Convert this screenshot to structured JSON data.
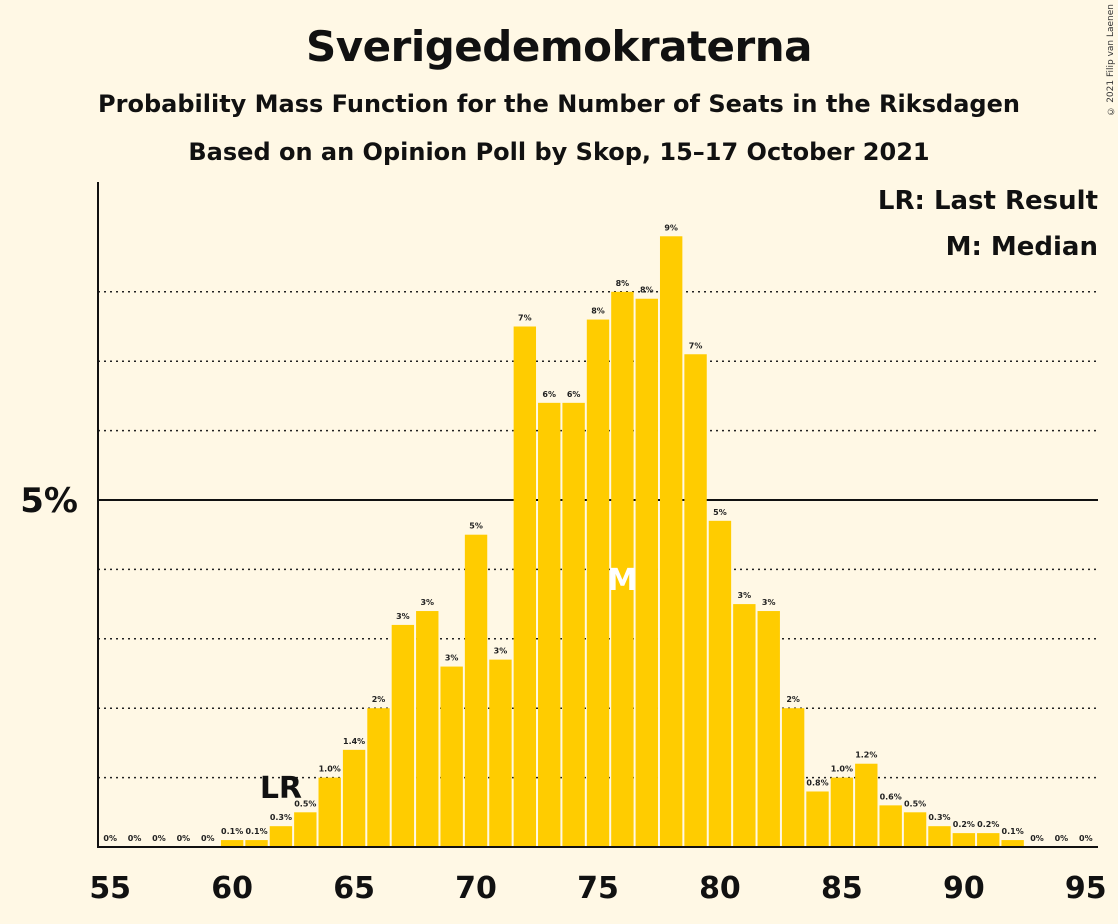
{
  "chart_data": {
    "type": "bar",
    "title": "Sverigedemokraterna",
    "subtitle": "Probability Mass Function for the Number of Seats in the Riksdagen",
    "subtitle2": "Based on an Opinion Poll by Skop, 15–17 October 2021",
    "x": [
      55,
      56,
      57,
      58,
      59,
      60,
      61,
      62,
      63,
      64,
      65,
      66,
      67,
      68,
      69,
      70,
      71,
      72,
      73,
      74,
      75,
      76,
      77,
      78,
      79,
      80,
      81,
      82,
      83,
      84,
      85,
      86,
      87,
      88,
      89,
      90,
      91,
      92,
      93,
      94,
      95
    ],
    "values": [
      0,
      0,
      0,
      0,
      0,
      0.1,
      0.1,
      0.3,
      0.5,
      1.0,
      1.4,
      2,
      3.2,
      3.4,
      2.6,
      4.5,
      2.7,
      7.5,
      6.4,
      6.4,
      7.6,
      8,
      7.9,
      8.8,
      7.1,
      4.7,
      3.5,
      3.4,
      2,
      0.8,
      1.0,
      1.2,
      0.6,
      0.5,
      0.3,
      0.2,
      0.2,
      0.1,
      0,
      0,
      0
    ],
    "value_labels": [
      "0%",
      "0%",
      "0%",
      "0%",
      "0%",
      "0.1%",
      "0.1%",
      "0.3%",
      "0.5%",
      "1.0%",
      "1.4%",
      "2%",
      "3%",
      "3%",
      "3%",
      "5%",
      "3%",
      "7%",
      "6%",
      "6%",
      "8%",
      "8%",
      "8%",
      "9%",
      "7%",
      "5%",
      "3%",
      "3%",
      "2%",
      "0.8%",
      "1.0%",
      "1.2%",
      "0.6%",
      "0.5%",
      "0.3%",
      "0.2%",
      "0.2%",
      "0.1%",
      "0%",
      "0%",
      "0%"
    ],
    "x_ticks": [
      55,
      60,
      65,
      70,
      75,
      80,
      85,
      90,
      95
    ],
    "y_ticks": [
      {
        "value": 5,
        "label": "5%"
      }
    ],
    "ylim": [
      0,
      9.6
    ],
    "y_unit": "%",
    "dotted_gridlines": [
      1,
      2,
      3,
      4,
      6,
      7,
      8
    ],
    "last_result_seat": 62,
    "median_seat": 76,
    "bar_color": "#ffcc00",
    "background_color": "#fff8e5"
  },
  "legend": {
    "lr": "LR: Last Result",
    "m": "M: Median"
  },
  "markers": {
    "lr": "LR",
    "m": "M"
  },
  "copyright": "© 2021 Filip van Laenen"
}
